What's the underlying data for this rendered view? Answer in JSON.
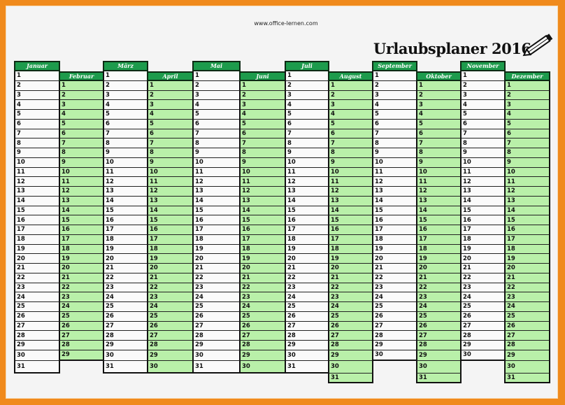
{
  "url": "www.office-lernen.com",
  "title": "Urlaubsplaner 2016",
  "icons": {
    "pencil": "pencil-icon"
  },
  "colors": {
    "border": "#f08a1c",
    "header": "#1d9b4c",
    "green_cell": "#b9f0a9",
    "white_cell": "#fafafa"
  },
  "months": [
    {
      "name": "Januar",
      "days": 31
    },
    {
      "name": "Februar",
      "days": 29
    },
    {
      "name": "März",
      "days": 31
    },
    {
      "name": "April",
      "days": 30
    },
    {
      "name": "Mai",
      "days": 31
    },
    {
      "name": "Juni",
      "days": 30
    },
    {
      "name": "Juli",
      "days": 31
    },
    {
      "name": "August",
      "days": 31
    },
    {
      "name": "September",
      "days": 30
    },
    {
      "name": "Oktober",
      "days": 31
    },
    {
      "name": "November",
      "days": 30
    },
    {
      "name": "Dezember",
      "days": 31
    }
  ]
}
